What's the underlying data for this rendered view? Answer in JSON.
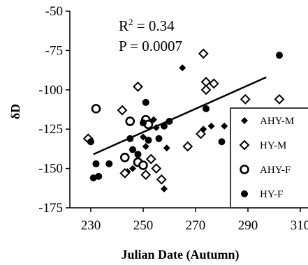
{
  "chart_data": {
    "type": "scatter",
    "title": "",
    "xlabel": "Julian Date (Autumn)",
    "ylabel": "δD",
    "xlim": [
      222,
      310
    ],
    "ylim": [
      -175,
      -50
    ],
    "x_ticks": [
      "230",
      "250",
      "270",
      "290",
      "310"
    ],
    "y_ticks": [
      "-50",
      "-75",
      "-100",
      "-125",
      "-150",
      "-175"
    ],
    "x_tick_values": [
      230,
      250,
      270,
      290,
      310
    ],
    "y_tick_values": [
      -50,
      -75,
      -100,
      -125,
      -150,
      -175
    ],
    "annotations": {
      "r2_prefix": "R",
      "r2_exp": "2",
      "r2_value": " = 0.34",
      "p_text": "P = 0.0007"
    },
    "legend_position": "right",
    "trend_line": {
      "x": [
        231,
        297
      ],
      "y": [
        -141,
        -92
      ]
    },
    "series": [
      {
        "name": "AHY-M",
        "marker": "filled-diamond",
        "points": [
          [
            244,
            -152
          ],
          [
            246,
            -150
          ],
          [
            250,
            -130
          ],
          [
            251,
            -136
          ],
          [
            254,
            -119
          ],
          [
            255,
            -124
          ],
          [
            258,
            -163
          ],
          [
            259,
            -137
          ],
          [
            265,
            -86
          ],
          [
            273,
            -125
          ],
          [
            276,
            -123
          ],
          [
            281,
            -123
          ]
        ]
      },
      {
        "name": "HY-M",
        "marker": "open-diamond",
        "points": [
          [
            229,
            -131
          ],
          [
            242,
            -113
          ],
          [
            243,
            -153
          ],
          [
            248,
            -98
          ],
          [
            251,
            -154
          ],
          [
            253,
            -144
          ],
          [
            255,
            -150
          ],
          [
            257,
            -157
          ],
          [
            267,
            -136
          ],
          [
            272,
            -128
          ],
          [
            273,
            -77
          ],
          [
            274,
            -95
          ],
          [
            274,
            -100
          ],
          [
            277,
            -96
          ],
          [
            289,
            -106
          ],
          [
            302,
            -106
          ]
        ]
      },
      {
        "name": "AHY-F",
        "marker": "open-circle",
        "points": [
          [
            232,
            -112
          ],
          [
            243,
            -143
          ],
          [
            245,
            -120
          ],
          [
            248,
            -146
          ],
          [
            250,
            -148
          ],
          [
            251,
            -119
          ],
          [
            252,
            -122
          ]
        ]
      },
      {
        "name": "HY-F",
        "marker": "filled-circle",
        "points": [
          [
            230,
            -133
          ],
          [
            231,
            -156
          ],
          [
            232,
            -147
          ],
          [
            233,
            -155
          ],
          [
            237,
            -147
          ],
          [
            245,
            -131
          ],
          [
            246,
            -138
          ],
          [
            248,
            -141
          ],
          [
            250,
            -121
          ],
          [
            251,
            -108
          ],
          [
            252,
            -132
          ],
          [
            256,
            -131
          ],
          [
            258,
            -123
          ],
          [
            260,
            -120
          ],
          [
            274,
            -112
          ],
          [
            280,
            -133
          ],
          [
            302,
            -78
          ]
        ]
      }
    ]
  }
}
